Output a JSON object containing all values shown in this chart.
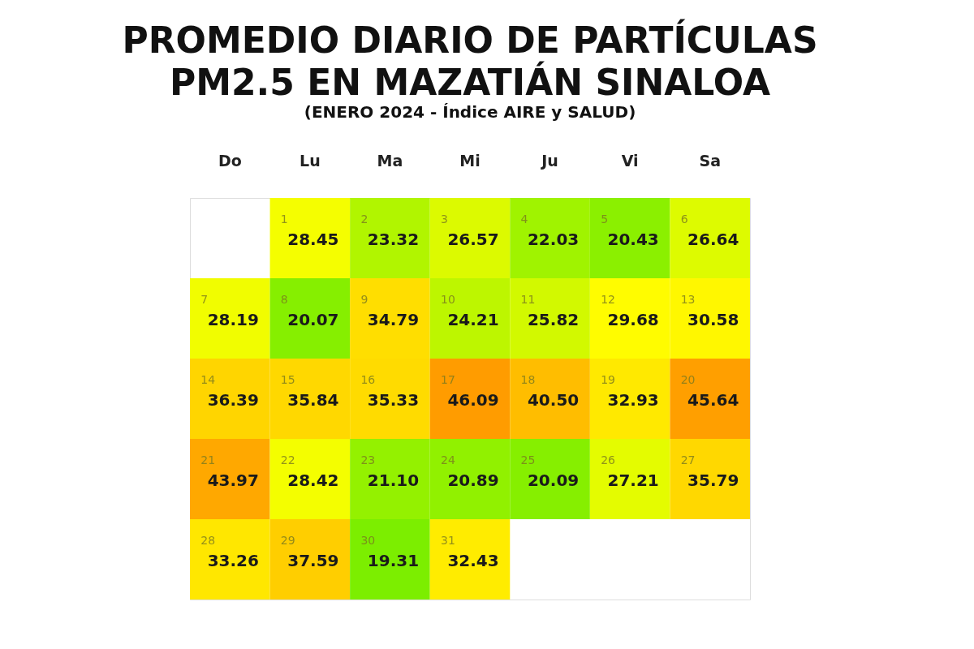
{
  "chart_data": {
    "type": "heatmap",
    "title": "PROMEDIO DIARIO DE PARTÍCULAS\nPM2.5 EN MAZATIÁN SINALOA",
    "subtitle": "(ENERO 2024 - Índice AIRE y SALUD)",
    "categories": [
      "Do",
      "Lu",
      "Ma",
      "Mi",
      "Ju",
      "Vi",
      "Sa"
    ],
    "y_categories": [
      null,
      null,
      null,
      null,
      null
    ],
    "cells": [
      [
        null,
        28.45,
        23.32,
        26.57,
        22.03,
        20.43,
        26.64
      ],
      [
        28.19,
        20.07,
        34.79,
        24.21,
        25.82,
        29.68,
        30.58
      ],
      [
        36.39,
        35.84,
        35.33,
        46.09,
        40.5,
        32.93,
        45.64
      ],
      [
        43.97,
        28.42,
        21.1,
        20.89,
        20.09,
        27.21,
        35.79
      ],
      [
        33.26,
        37.59,
        19.31,
        32.43,
        null,
        null,
        null
      ]
    ],
    "annotations": [
      "1",
      "2",
      "3",
      "4",
      "5",
      "6",
      "7",
      "8",
      "9",
      "10",
      "11",
      "12",
      "13",
      "14",
      "15",
      "16",
      "17",
      "18",
      "19",
      "20",
      "21",
      "22",
      "23",
      "24",
      "25",
      "26",
      "27",
      "28",
      "29",
      "30",
      "31"
    ],
    "cell_labels": [
      [
        null,
        "28.45",
        "23.32",
        "26.57",
        "22.03",
        "20.43",
        "26.64"
      ],
      [
        "28.19",
        "20.07",
        "34.79",
        "24.21",
        "25.82",
        "29.68",
        "30.58"
      ],
      [
        "36.39",
        "35.84",
        "35.33",
        "46.09",
        "40.50",
        "32.93",
        "45.64"
      ],
      [
        "43.97",
        "28.42",
        "21.10",
        "20.89",
        "20.09",
        "27.21",
        "35.79"
      ],
      [
        "33.26",
        "37.59",
        "19.31",
        "32.43",
        null,
        null,
        null
      ]
    ]
  }
}
